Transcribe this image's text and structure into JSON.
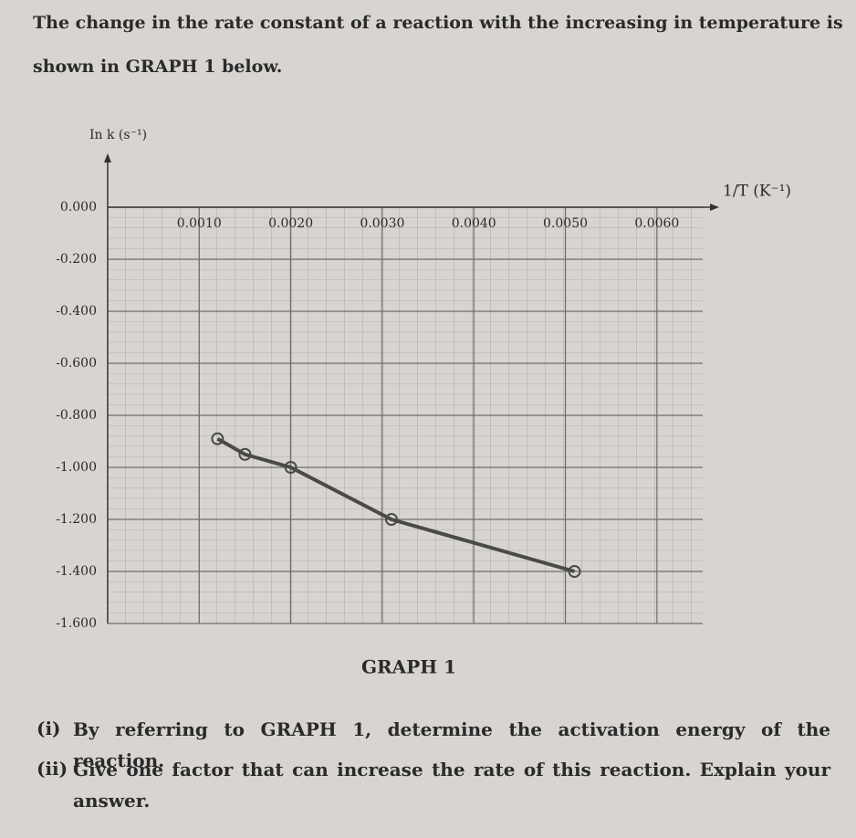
{
  "intro": [
    "The change in the rate constant of a reaction with the increasing in temperature is",
    "shown in GRAPH 1 below."
  ],
  "chart_data": {
    "type": "line",
    "title": "GRAPH 1",
    "y_label": "In k (s⁻¹)",
    "x_label": "1/T (K⁻¹)",
    "x": [
      0.0012,
      0.0015,
      0.002,
      0.0031,
      0.0051
    ],
    "series": [
      {
        "name": "ln k",
        "color": "#4a4a4a",
        "values": [
          -0.89,
          -0.95,
          -1.0,
          -1.2,
          -1.4
        ]
      }
    ],
    "xlim": [
      0,
      0.0065
    ],
    "ylim": [
      -1.6,
      0
    ],
    "xticks": [
      {
        "value": 0.001,
        "label": "0.0010"
      },
      {
        "value": 0.002,
        "label": "0.0020"
      },
      {
        "value": 0.003,
        "label": "0.0030"
      },
      {
        "value": 0.004,
        "label": "0.0040"
      },
      {
        "value": 0.005,
        "label": "0.0050"
      },
      {
        "value": 0.006,
        "label": "0.0060"
      }
    ],
    "yticks": [
      {
        "value": 0,
        "label": "0.000"
      },
      {
        "value": -0.2,
        "label": "-0.200"
      },
      {
        "value": -0.4,
        "label": "-0.400"
      },
      {
        "value": -0.6,
        "label": "-0.600"
      },
      {
        "value": -0.8,
        "label": "-0.800"
      },
      {
        "value": -1.0,
        "label": "-1.000"
      },
      {
        "value": -1.2,
        "label": "-1.200"
      },
      {
        "value": -1.4,
        "label": "-1.400"
      },
      {
        "value": -1.6,
        "label": "-1.600"
      }
    ],
    "grid": true
  },
  "questions": [
    {
      "number": "(i)",
      "text": "By referring to GRAPH 1, determine the activation energy of the reaction."
    },
    {
      "number": "(ii)",
      "text": "Give one factor that can increase the rate of this reaction. Explain your answer."
    }
  ]
}
